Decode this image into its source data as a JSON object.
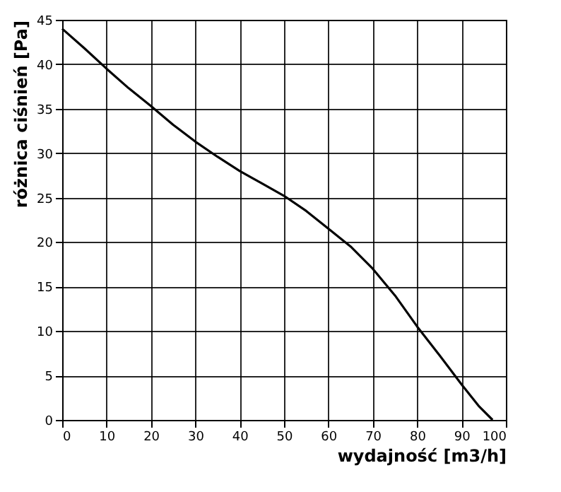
{
  "chart_data": {
    "type": "line",
    "xlabel": "wydajność [m3/h]",
    "ylabel": "różnica ciśnień [Pa]",
    "series": [
      {
        "color": "#000000",
        "x": [
          0,
          5,
          10,
          15,
          20,
          25,
          30,
          35,
          40,
          45,
          50,
          55,
          60,
          65,
          70,
          75,
          80,
          85,
          90,
          94,
          97
        ],
        "values": [
          44,
          41.8,
          39.5,
          37.3,
          35.3,
          33.2,
          31.3,
          29.6,
          28,
          26.6,
          25.2,
          23.5,
          21.5,
          19.5,
          17,
          14,
          10.5,
          7.3,
          4,
          1.5,
          0
        ]
      }
    ],
    "xlim": [
      0,
      100
    ],
    "ylim": [
      0,
      45
    ],
    "xticks": [
      0,
      10,
      20,
      30,
      40,
      50,
      60,
      70,
      80,
      90,
      100
    ],
    "yticks": [
      0,
      5,
      10,
      15,
      20,
      25,
      30,
      35,
      40,
      45
    ],
    "grid": true,
    "marker": "none",
    "line_style": "solid"
  }
}
